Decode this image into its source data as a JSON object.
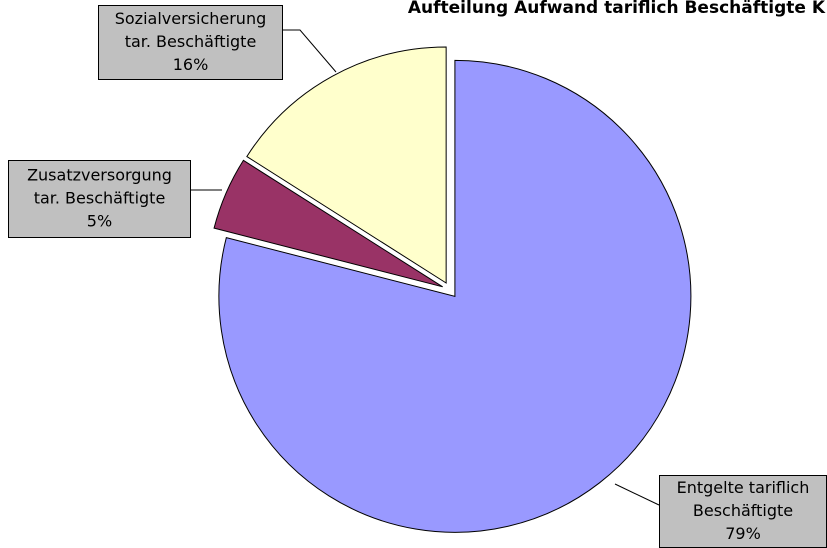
{
  "chart_data": {
    "type": "pie",
    "title": "Aufteilung Aufwand tariflich Beschäftigte K",
    "categories": [
      [
        "Entgelte tariflich",
        "Beschäftigte"
      ],
      [
        "Zusatzversorgung",
        "tar. Beschäftigte"
      ],
      [
        "Sozialversicherung",
        "tar. Beschäftigte"
      ]
    ],
    "values": [
      79,
      5,
      16
    ],
    "value_labels": [
      "79%",
      "5%",
      "16%"
    ],
    "colors": [
      "#9999ff",
      "#993366",
      "#ffffcc"
    ]
  }
}
